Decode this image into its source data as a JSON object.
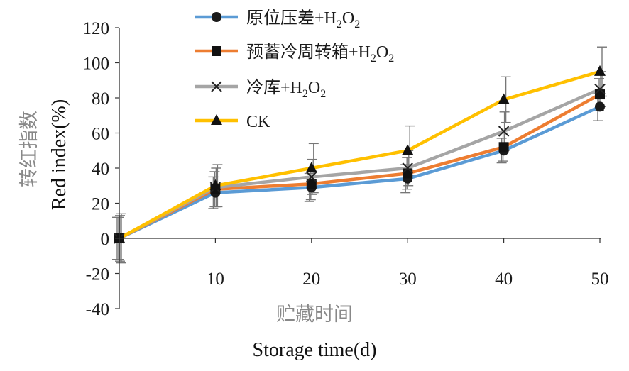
{
  "chart_data": {
    "type": "line",
    "x": [
      0,
      10,
      20,
      30,
      40,
      50
    ],
    "xticks": [
      "10",
      "20",
      "30",
      "40",
      "50"
    ],
    "yticks": [
      "-40",
      "-20",
      "0",
      "20",
      "40",
      "60",
      "80",
      "100",
      "120"
    ],
    "ylim": [
      -40,
      120
    ],
    "xlim": [
      0,
      50
    ],
    "xlabel_cn": "贮藏时间",
    "xlabel": "Storage time(d)",
    "ylabel_cn": "转红指数",
    "ylabel": "Red index(%)",
    "legend_position": "top-center",
    "grid": false,
    "series": [
      {
        "name_parts": [
          "原位压差+H",
          "2",
          "O",
          "2"
        ],
        "color": "#5B9BD5",
        "marker": "circle",
        "values": [
          0,
          26,
          29,
          34,
          50,
          75
        ],
        "errors": [
          12,
          9,
          8,
          8,
          7,
          8
        ]
      },
      {
        "name_parts": [
          "预蓄冷周转箱+H",
          "2",
          "O",
          "2"
        ],
        "color": "#ED7D31",
        "marker": "square",
        "values": [
          0,
          28,
          31,
          37,
          52,
          82
        ],
        "errors": [
          12,
          10,
          9,
          9,
          8,
          9
        ]
      },
      {
        "name_parts": [
          "冷库+H",
          "2",
          "O",
          "2"
        ],
        "color": "#A5A5A5",
        "marker": "x",
        "values": [
          0,
          29,
          35,
          40,
          61,
          85
        ],
        "errors": [
          13,
          11,
          10,
          10,
          11,
          10
        ]
      },
      {
        "name_parts": [
          "CK"
        ],
        "color": "#FFC000",
        "marker": "triangle",
        "values": [
          0,
          30,
          40,
          50,
          79,
          95
        ],
        "errors": [
          14,
          12,
          14,
          14,
          13,
          14
        ]
      }
    ]
  }
}
